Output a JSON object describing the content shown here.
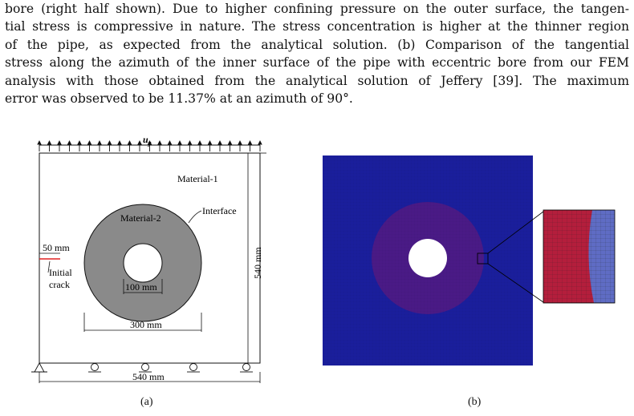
{
  "caption_lines": [
    "bore (right half shown). Due to higher confining pressure on the outer surface, the tangen-",
    "tial stress is compressive in nature. The stress concentration is higher at the thinner region",
    "of the pipe, as expected from the analytical solution. (b) Comparison of the tangential",
    "stress along the azimuth of the inner surface of the pipe with eccentric bore from our FEM",
    "analysis with those obtained from the analytical solution of Jeffery [39]. The maximum",
    "error was observed to be 11.37% at an azimuth of 90°."
  ],
  "figure_a": {
    "load_label": "u",
    "load_subscript": "y",
    "material_1": "Material-1",
    "material_2": "Material-2",
    "interface": "Interface",
    "crack_length": "50 mm",
    "crack_label_1": "Initial",
    "crack_label_2": "crack",
    "hole_dim": "100 mm",
    "inclusion_dim": "300 mm",
    "height_dim": "540 mm",
    "width_dim": "540 mm",
    "panel_label": "(a)"
  },
  "figure_b": {
    "panel_label": "(b)",
    "colors": {
      "matrix": "#1a1e9c",
      "inclusion": "#4a1a86",
      "hole": "#ffffff",
      "zoom_red": "#b41e3c",
      "zoom_blue": "#5f6cc4"
    }
  }
}
